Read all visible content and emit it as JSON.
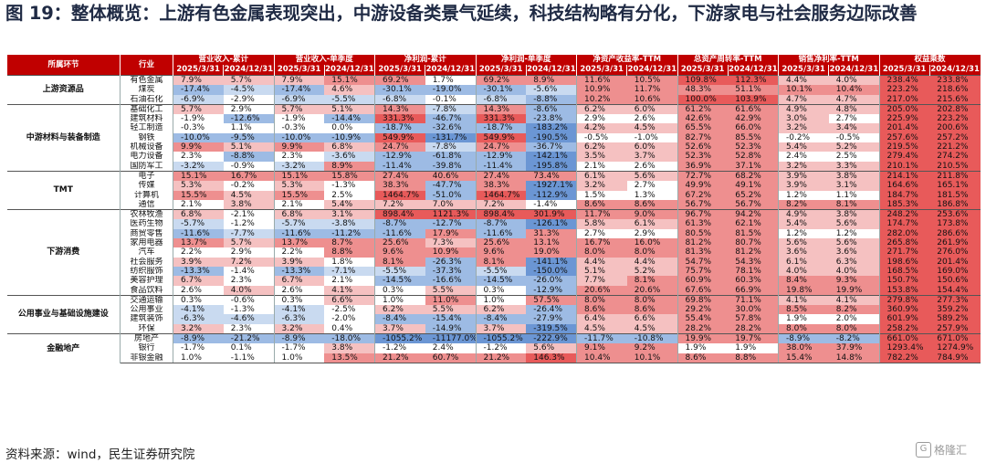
{
  "title": "图 19：整体概览：上游有色金属表现突出，中游设备类景气延续，科技结构略有分化，下游家电与社会服务边际改善",
  "source": "资料来源：wind，民生证券研究院",
  "watermark": "格隆汇",
  "colors": {
    "header": "#c00000",
    "positive": "#e85a5a",
    "negative": "#6b96d4"
  },
  "table": {
    "group_header": "所属环节",
    "industry_header": "行业",
    "metrics": [
      "营业收入-累计",
      "营业收入-单季度",
      "净利润-累计",
      "净利润-单季度",
      "净资产收益率-TTM",
      "总资产周转率-TTM",
      "销售净利率-TTM",
      "权益乘数"
    ],
    "periods": [
      "2025/3/31",
      "2024/12/31"
    ],
    "groups": [
      {
        "name": "上游资源品",
        "rows": [
          {
            "industry": "有色金属",
            "values": [
              "7.9%",
              "5.7%",
              "7.9%",
              "15.1%",
              "69.2%",
              "1.7%",
              "69.2%",
              "8.9%",
              "11.6%",
              "10.5%",
              "109.8%",
              "112.3%",
              "4.4%",
              "4.0%",
              "238.4%",
              "233.8%"
            ]
          },
          {
            "industry": "煤炭",
            "values": [
              "-17.4%",
              "-4.5%",
              "-17.4%",
              "4.6%",
              "-30.1%",
              "-19.0%",
              "-30.1%",
              "-5.6%",
              "10.9%",
              "11.7%",
              "48.3%",
              "51.1%",
              "10.1%",
              "10.4%",
              "223.2%",
              "218.6%"
            ]
          },
          {
            "industry": "石油石化",
            "values": [
              "-6.9%",
              "-2.9%",
              "-6.9%",
              "-5.5%",
              "-6.8%",
              "-0.1%",
              "-6.8%",
              "-8.8%",
              "10.2%",
              "10.6%",
              "100.0%",
              "103.9%",
              "4.7%",
              "4.7%",
              "217.0%",
              "215.6%"
            ]
          }
        ]
      },
      {
        "name": "中游材料与装备制造",
        "rows": [
          {
            "industry": "基础化工",
            "values": [
              "5.7%",
              "2.9%",
              "5.7%",
              "5.1%",
              "14.3%",
              "-7.8%",
              "14.3%",
              "-8.6%",
              "6.2%",
              "6.0%",
              "61.2%",
              "61.6%",
              "4.9%",
              "4.8%",
              "205.0%",
              "202.8%"
            ]
          },
          {
            "industry": "建筑材料",
            "values": [
              "-1.9%",
              "-12.6%",
              "-1.9%",
              "-14.4%",
              "331.3%",
              "-46.7%",
              "331.3%",
              "-23.8%",
              "2.9%",
              "2.6%",
              "42.6%",
              "42.9%",
              "3.0%",
              "2.7%",
              "225.9%",
              "223.2%"
            ]
          },
          {
            "industry": "轻工制造",
            "values": [
              "-0.3%",
              "1.1%",
              "-0.3%",
              "0.0%",
              "-18.7%",
              "-32.6%",
              "-18.7%",
              "-183.2%",
              "4.2%",
              "4.5%",
              "65.5%",
              "66.0%",
              "3.2%",
              "3.4%",
              "201.4%",
              "200.6%"
            ]
          },
          {
            "industry": "钢铁",
            "values": [
              "-10.0%",
              "-9.5%",
              "-10.0%",
              "-10.9%",
              "549.9%",
              "-131.7%",
              "549.9%",
              "-190.5%",
              "-0.5%",
              "-1.0%",
              "82.7%",
              "85.5%",
              "-0.2%",
              "-0.5%",
              "257.6%",
              "257.2%"
            ]
          },
          {
            "industry": "机械设备",
            "values": [
              "9.9%",
              "5.1%",
              "9.9%",
              "6.8%",
              "24.7%",
              "-7.8%",
              "24.7%",
              "-36.7%",
              "6.2%",
              "6.0%",
              "52.6%",
              "52.3%",
              "5.4%",
              "5.2%",
              "219.5%",
              "221.2%"
            ]
          },
          {
            "industry": "电力设备",
            "values": [
              "2.3%",
              "-8.8%",
              "2.3%",
              "-3.6%",
              "-12.9%",
              "-61.8%",
              "-12.9%",
              "-142.1%",
              "3.5%",
              "3.7%",
              "52.3%",
              "52.8%",
              "2.4%",
              "2.5%",
              "279.4%",
              "274.2%"
            ]
          },
          {
            "industry": "国防军工",
            "values": [
              "-3.2%",
              "-0.9%",
              "-3.2%",
              "8.9%",
              "-11.4%",
              "-39.8%",
              "-11.4%",
              "-195.8%",
              "2.1%",
              "2.6%",
              "36.9%",
              "37.1%",
              "3.2%",
              "3.3%",
              "210.1%",
              "210.5%"
            ]
          }
        ]
      },
      {
        "name": "TMT",
        "rows": [
          {
            "industry": "电子",
            "values": [
              "15.1%",
              "16.7%",
              "15.1%",
              "15.8%",
              "27.4%",
              "40.6%",
              "27.4%",
              "73.4%",
              "6.1%",
              "5.6%",
              "72.7%",
              "68.2%",
              "3.9%",
              "3.8%",
              "214.1%",
              "211.8%"
            ]
          },
          {
            "industry": "传媒",
            "values": [
              "5.3%",
              "-0.2%",
              "5.3%",
              "-1.3%",
              "38.3%",
              "-47.7%",
              "38.3%",
              "-1927.1%",
              "3.2%",
              "2.7%",
              "49.9%",
              "49.1%",
              "3.9%",
              "3.1%",
              "164.6%",
              "165.1%"
            ]
          },
          {
            "industry": "计算机",
            "values": [
              "15.5%",
              "4.5%",
              "15.5%",
              "2.5%",
              "1464.7%",
              "-51.0%",
              "1464.7%",
              "-112.9%",
              "1.5%",
              "1.3%",
              "67.2%",
              "65.2%",
              "1.2%",
              "1.1%",
              "184.7%",
              "181.5%"
            ]
          },
          {
            "industry": "通信",
            "values": [
              "2.1%",
              "3.8%",
              "2.1%",
              "5.4%",
              "7.2%",
              "7.0%",
              "7.2%",
              "-1.4%",
              "8.6%",
              "8.6%",
              "56.7%",
              "56.7%",
              "8.2%",
              "8.1%",
              "185.3%",
              "186.8%"
            ]
          }
        ]
      },
      {
        "name": "下游消费",
        "rows": [
          {
            "industry": "农林牧渔",
            "values": [
              "6.8%",
              "-2.1%",
              "6.8%",
              "3.1%",
              "898.4%",
              "1121.3%",
              "898.4%",
              "301.9%",
              "11.7%",
              "9.0%",
              "96.7%",
              "94.2%",
              "4.9%",
              "3.8%",
              "248.2%",
              "253.6%"
            ]
          },
          {
            "industry": "医药生物",
            "values": [
              "-5.7%",
              "-1.2%",
              "-5.7%",
              "-3.8%",
              "-8.7%",
              "-12.7%",
              "-8.7%",
              "-126.1%",
              "5.8%",
              "6.1%",
              "61.3%",
              "62.1%",
              "5.4%",
              "5.6%",
              "174.7%",
              "173.8%"
            ]
          },
          {
            "industry": "商贸零售",
            "values": [
              "-11.6%",
              "-7.7%",
              "-11.6%",
              "-11.2%",
              "-11.6%",
              "17.9%",
              "-11.6%",
              "31.3%",
              "2.7%",
              "2.9%",
              "80.5%",
              "81.5%",
              "1.2%",
              "1.2%",
              "282.0%",
              "286.6%"
            ]
          },
          {
            "industry": "家用电器",
            "values": [
              "13.7%",
              "5.7%",
              "13.7%",
              "8.7%",
              "25.6%",
              "7.3%",
              "25.6%",
              "13.1%",
              "16.7%",
              "16.0%",
              "81.2%",
              "80.7%",
              "5.6%",
              "5.6%",
              "265.8%",
              "261.9%"
            ]
          },
          {
            "industry": "汽车",
            "values": [
              "2.2%",
              "2.9%",
              "2.2%",
              "8.8%",
              "9.6%",
              "10.9%",
              "9.6%",
              "19.0%",
              "8.0%",
              "8.0%",
              "81.3%",
              "81.2%",
              "3.6%",
              "3.6%",
              "271.7%",
              "276.0%"
            ]
          },
          {
            "industry": "社会服务",
            "values": [
              "3.9%",
              "7.2%",
              "3.9%",
              "1.8%",
              "8.1%",
              "-26.3%",
              "8.1%",
              "-141.1%",
              "4.4%",
              "4.4%",
              "54.7%",
              "54.3%",
              "6.1%",
              "6.3%",
              "198.6%",
              "201.4%"
            ]
          },
          {
            "industry": "纺织服饰",
            "values": [
              "-13.3%",
              "-1.4%",
              "-13.3%",
              "-7.1%",
              "-5.5%",
              "-37.3%",
              "-5.5%",
              "-150.0%",
              "5.1%",
              "5.2%",
              "75.7%",
              "78.1%",
              "4.0%",
              "4.0%",
              "168.5%",
              "169.0%"
            ]
          },
          {
            "industry": "美容护理",
            "values": [
              "6.7%",
              "2.3%",
              "6.7%",
              "2.1%",
              "-14.5%",
              "-16.6%",
              "-14.5%",
              "-26.0%",
              "7.7%",
              "8.1%",
              "60.9%",
              "60.3%",
              "8.4%",
              "9.3%",
              "150.7%",
              "150.6%"
            ]
          },
          {
            "industry": "食品饮料",
            "values": [
              "2.6%",
              "4.0%",
              "2.6%",
              "4.1%",
              "0.3%",
              "5.5%",
              "0.3%",
              "-12.9%",
              "20.6%",
              "20.6%",
              "67.6%",
              "66.9%",
              "19.8%",
              "19.9%",
              "153.8%",
              "154.4%"
            ]
          }
        ]
      },
      {
        "name": "公用事业与基础设施建设",
        "rows": [
          {
            "industry": "交通运输",
            "values": [
              "0.3%",
              "-0.6%",
              "0.3%",
              "6.6%",
              "1.0%",
              "11.0%",
              "1.0%",
              "57.5%",
              "8.0%",
              "8.0%",
              "69.8%",
              "71.1%",
              "4.1%",
              "4.1%",
              "279.8%",
              "277.3%"
            ]
          },
          {
            "industry": "公用事业",
            "values": [
              "-4.1%",
              "-1.3%",
              "-4.1%",
              "-2.5%",
              "6.2%",
              "5.5%",
              "6.2%",
              "-26.4%",
              "8.6%",
              "8.6%",
              "29.2%",
              "30.0%",
              "8.5%",
              "8.2%",
              "360.9%",
              "359.2%"
            ]
          },
          {
            "industry": "建筑装饰",
            "values": [
              "-6.3%",
              "-4.6%",
              "-6.3%",
              "-2.0%",
              "-8.4%",
              "-15.4%",
              "-8.4%",
              "-27.9%",
              "6.4%",
              "6.6%",
              "55.4%",
              "57.8%",
              "1.9%",
              "2.0%",
              "601.9%",
              "589.2%"
            ]
          },
          {
            "industry": "环保",
            "values": [
              "3.2%",
              "2.3%",
              "3.2%",
              "0.4%",
              "3.7%",
              "-14.9%",
              "3.7%",
              "-319.5%",
              "4.5%",
              "4.5%",
              "28.2%",
              "28.2%",
              "8.0%",
              "8.0%",
              "258.2%",
              "257.9%"
            ]
          }
        ]
      },
      {
        "name": "金融地产",
        "rows": [
          {
            "industry": "房地产",
            "values": [
              "-8.9%",
              "-21.2%",
              "-8.9%",
              "-18.0%",
              "-1055.2%",
              "-11177.0%",
              "-1055.2%",
              "-222.9%",
              "-11.7%",
              "-10.8%",
              "19.9%",
              "19.7%",
              "-8.9%",
              "-8.2%",
              "661.0%",
              "671.0%"
            ]
          },
          {
            "industry": "银行",
            "values": [
              "-1.7%",
              "0.1%",
              "-1.7%",
              "3.8%",
              "-1.2%",
              "2.4%",
              "-1.2%",
              "5.6%",
              "9.1%",
              "9.2%",
              "1.9%",
              "1.9%",
              "38.0%",
              "37.9%",
              "1293.4%",
              "1274.9%"
            ]
          },
          {
            "industry": "非银金融",
            "values": [
              "1.0%",
              "-1.1%",
              "1.0%",
              "13.5%",
              "21.2%",
              "60.7%",
              "21.2%",
              "146.3%",
              "10.4%",
              "10.1%",
              "8.6%",
              "8.8%",
              "15.4%",
              "14.8%",
              "782.2%",
              "784.9%"
            ]
          }
        ]
      }
    ]
  }
}
